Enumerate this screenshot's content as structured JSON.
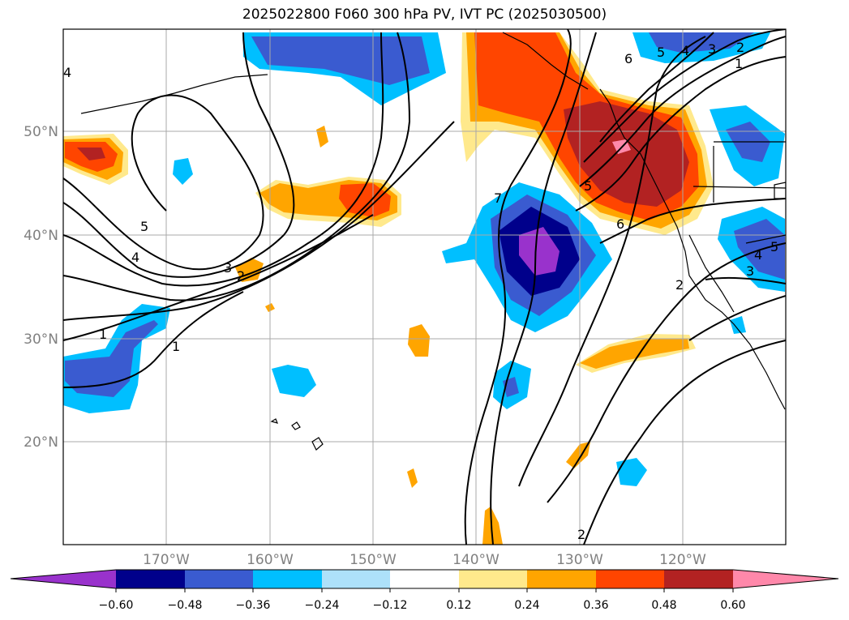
{
  "title": "2025022800 F060 300 hPa PV, IVT PC (2025030500)",
  "lat_labels": [
    "50°N",
    "40°N",
    "30°N",
    "20°N"
  ],
  "lon_labels": [
    "170°W",
    "160°W",
    "150°W",
    "140°W",
    "130°W",
    "120°W"
  ],
  "colorbar": {
    "ticks": [
      "−0.60",
      "−0.48",
      "−0.36",
      "−0.24",
      "−0.12",
      "0.12",
      "0.24",
      "0.36",
      "0.48",
      "0.60"
    ],
    "colors": [
      "#9932CC",
      "#00008B",
      "#3A5BD0",
      "#00BFFF",
      "#ADE1FA",
      "#FFFFFF",
      "#FFE98C",
      "#FFA500",
      "#FF4500",
      "#B22222",
      "#FF88AA"
    ]
  },
  "contour_labels": [
    "1",
    "2",
    "3",
    "4",
    "5",
    "6",
    "7",
    "1",
    "2",
    "3",
    "4",
    "5",
    "6",
    "2",
    "1",
    "2",
    "3",
    "4",
    "5"
  ]
}
